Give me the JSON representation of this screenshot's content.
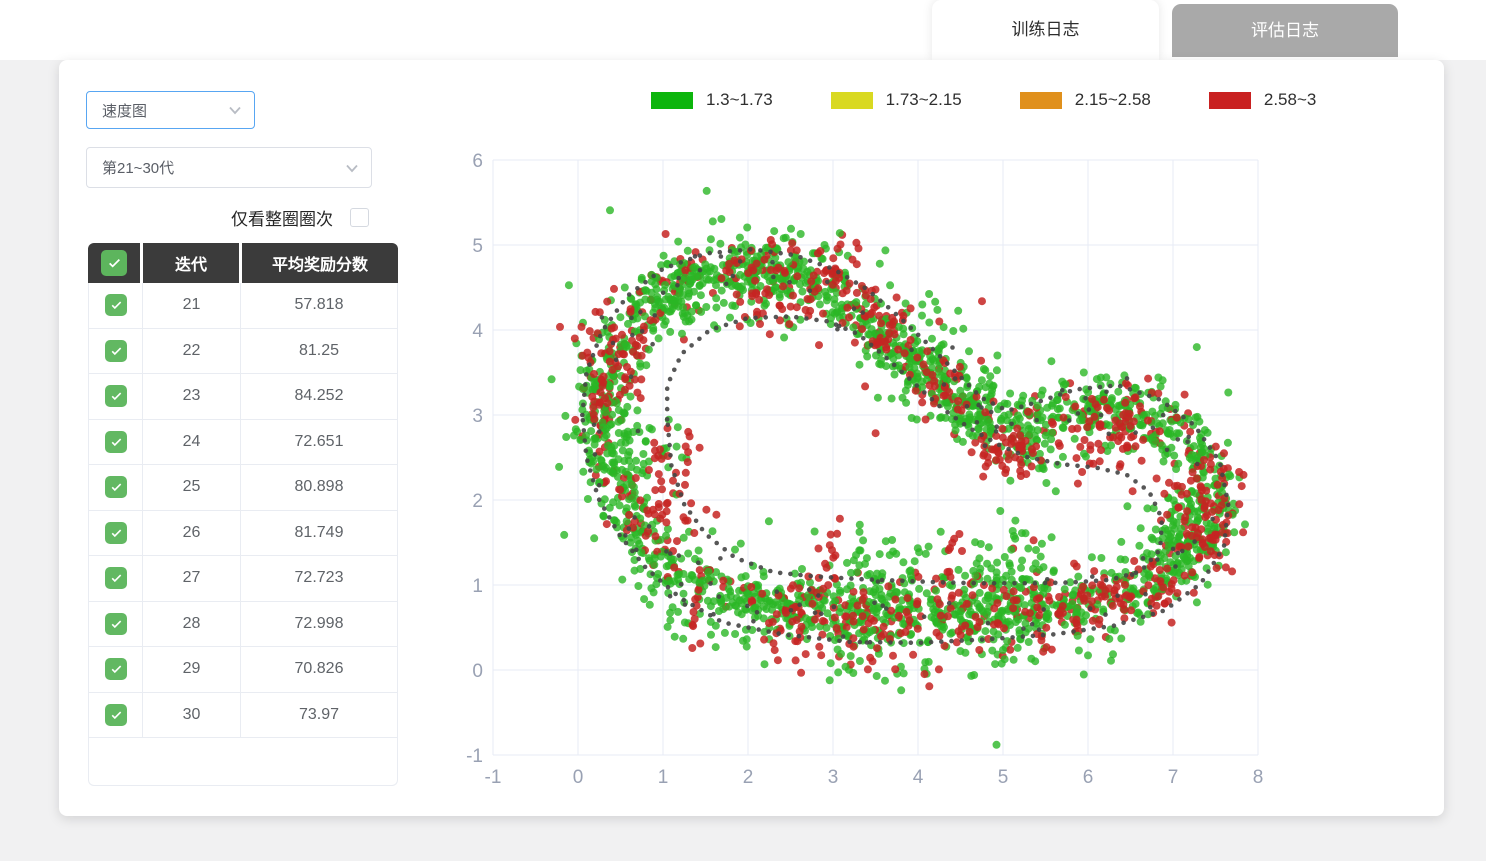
{
  "tabs": {
    "training": "训练日志",
    "evaluation": "评估日志",
    "active": "training"
  },
  "controls": {
    "chart_type_select": {
      "value": "速度图"
    },
    "generation_select": {
      "value": "第21~30代"
    },
    "full_laps_checkbox": {
      "label": "仅看整圈圈次",
      "checked": false
    }
  },
  "table": {
    "header": {
      "select_all_checked": true,
      "iteration": "迭代",
      "avg_reward": "平均奖励分数"
    },
    "rows": [
      {
        "checked": true,
        "iteration": "21",
        "avg_reward": "57.818"
      },
      {
        "checked": true,
        "iteration": "22",
        "avg_reward": "81.25"
      },
      {
        "checked": true,
        "iteration": "23",
        "avg_reward": "84.252"
      },
      {
        "checked": true,
        "iteration": "24",
        "avg_reward": "72.651"
      },
      {
        "checked": true,
        "iteration": "25",
        "avg_reward": "80.898"
      },
      {
        "checked": true,
        "iteration": "26",
        "avg_reward": "81.749"
      },
      {
        "checked": true,
        "iteration": "27",
        "avg_reward": "72.723"
      },
      {
        "checked": true,
        "iteration": "28",
        "avg_reward": "72.998"
      },
      {
        "checked": true,
        "iteration": "29",
        "avg_reward": "70.826"
      },
      {
        "checked": true,
        "iteration": "30",
        "avg_reward": "73.97"
      }
    ]
  },
  "chart_data": {
    "type": "scatter",
    "title": "",
    "xlabel": "",
    "ylabel": "",
    "xlim": [
      -1,
      8
    ],
    "ylim": [
      -1,
      6
    ],
    "xticks": [
      -1,
      0,
      1,
      2,
      3,
      4,
      5,
      6,
      7,
      8
    ],
    "yticks": [
      -1,
      0,
      1,
      2,
      3,
      4,
      5,
      6
    ],
    "grid": true,
    "legend": {
      "position": "top",
      "bins": [
        {
          "label": "1.3~1.73",
          "color": "#0cb50c"
        },
        {
          "label": "1.73~2.15",
          "color": "#d9d921"
        },
        {
          "label": "2.15~2.58",
          "color": "#e0901c"
        },
        {
          "label": "2.58~3",
          "color": "#c92121"
        }
      ]
    },
    "colors": {
      "green": "#2bb626",
      "red": "#c62522",
      "dark": "#454545"
    },
    "track_border_inner": [
      [
        1.05,
        2.95
      ],
      [
        1.05,
        3.35
      ],
      [
        1.22,
        3.72
      ],
      [
        1.55,
        4.0
      ],
      [
        2.0,
        4.14
      ],
      [
        2.5,
        4.16
      ],
      [
        2.95,
        4.1
      ],
      [
        3.3,
        3.95
      ],
      [
        3.62,
        3.68
      ],
      [
        3.95,
        3.38
      ],
      [
        4.28,
        3.08
      ],
      [
        4.6,
        2.85
      ],
      [
        4.95,
        2.65
      ],
      [
        5.3,
        2.5
      ],
      [
        5.7,
        2.42
      ],
      [
        6.1,
        2.38
      ],
      [
        6.45,
        2.3
      ],
      [
        6.72,
        2.1
      ],
      [
        6.87,
        1.78
      ],
      [
        6.85,
        1.42
      ],
      [
        6.62,
        1.16
      ],
      [
        6.25,
        1.06
      ],
      [
        5.8,
        1.03
      ],
      [
        5.3,
        1.02
      ],
      [
        4.8,
        1.02
      ],
      [
        4.3,
        1.03
      ],
      [
        3.8,
        1.05
      ],
      [
        3.3,
        1.07
      ],
      [
        2.8,
        1.1
      ],
      [
        2.3,
        1.15
      ],
      [
        1.85,
        1.32
      ],
      [
        1.5,
        1.6
      ],
      [
        1.25,
        1.95
      ],
      [
        1.1,
        2.4
      ]
    ],
    "track_border_outer": [
      [
        0.05,
        3.0
      ],
      [
        0.1,
        3.5
      ],
      [
        0.28,
        3.98
      ],
      [
        0.58,
        4.4
      ],
      [
        1.0,
        4.72
      ],
      [
        1.5,
        4.9
      ],
      [
        2.05,
        4.95
      ],
      [
        2.55,
        4.88
      ],
      [
        3.0,
        4.72
      ],
      [
        3.4,
        4.48
      ],
      [
        3.75,
        4.18
      ],
      [
        4.1,
        3.85
      ],
      [
        4.45,
        3.5
      ],
      [
        4.75,
        3.2
      ],
      [
        5.05,
        3.05
      ],
      [
        5.4,
        3.15
      ],
      [
        5.85,
        3.3
      ],
      [
        6.35,
        3.35
      ],
      [
        6.85,
        3.18
      ],
      [
        7.25,
        2.88
      ],
      [
        7.55,
        2.45
      ],
      [
        7.65,
        1.95
      ],
      [
        7.6,
        1.45
      ],
      [
        7.33,
        1.02
      ],
      [
        6.9,
        0.7
      ],
      [
        6.3,
        0.52
      ],
      [
        5.6,
        0.42
      ],
      [
        4.8,
        0.36
      ],
      [
        4.0,
        0.32
      ],
      [
        3.2,
        0.33
      ],
      [
        2.4,
        0.42
      ],
      [
        1.7,
        0.56
      ],
      [
        1.2,
        0.85
      ],
      [
        0.8,
        1.2
      ],
      [
        0.48,
        1.6
      ],
      [
        0.24,
        2.02
      ],
      [
        0.1,
        2.5
      ]
    ],
    "band_center": [
      [
        1.6,
        0.92
      ],
      [
        2.1,
        0.8
      ],
      [
        2.7,
        0.7
      ],
      [
        3.3,
        0.66
      ],
      [
        3.9,
        0.65
      ],
      [
        4.5,
        0.68
      ],
      [
        5.1,
        0.72
      ],
      [
        5.7,
        0.78
      ],
      [
        6.3,
        0.88
      ],
      [
        6.85,
        1.05
      ],
      [
        7.2,
        1.35
      ],
      [
        7.42,
        1.75
      ],
      [
        7.45,
        2.15
      ],
      [
        7.3,
        2.55
      ],
      [
        7.0,
        2.85
      ],
      [
        6.6,
        3.05
      ],
      [
        6.15,
        3.1
      ],
      [
        5.7,
        3.02
      ],
      [
        5.3,
        2.88
      ],
      [
        4.95,
        2.85
      ],
      [
        4.6,
        3.05
      ],
      [
        4.25,
        3.35
      ],
      [
        3.9,
        3.68
      ],
      [
        3.55,
        4.0
      ],
      [
        3.2,
        4.3
      ],
      [
        2.85,
        4.55
      ],
      [
        2.45,
        4.7
      ],
      [
        2.0,
        4.75
      ],
      [
        1.55,
        4.7
      ],
      [
        1.12,
        4.55
      ],
      [
        0.78,
        4.28
      ],
      [
        0.52,
        3.92
      ],
      [
        0.33,
        3.5
      ],
      [
        0.25,
        3.05
      ],
      [
        0.28,
        2.6
      ],
      [
        0.42,
        2.15
      ],
      [
        0.65,
        1.75
      ],
      [
        0.95,
        1.4
      ],
      [
        1.3,
        1.1
      ]
    ],
    "generation": {
      "seed": 1337,
      "main_count": 1900,
      "sigma": 0.17,
      "wide_sigma": 0.33,
      "wide_frac": 0.1,
      "outlier_sigma": 0.5,
      "outlier_frac": 0.03,
      "red_fraction": 0.18,
      "dark_speckles": 120,
      "speckle_sigma": 0.18,
      "point_radius": 4.0,
      "border_dot_radius": 2.3,
      "border_dot_spacing": 0.12
    },
    "red_hotspots": [
      [
        5.05,
        2.62,
        0.22,
        55
      ],
      [
        6.35,
        2.95,
        0.26,
        45
      ],
      [
        6.05,
        2.62,
        0.2,
        20
      ],
      [
        7.35,
        2.05,
        0.22,
        45
      ],
      [
        7.42,
        1.45,
        0.2,
        30
      ],
      [
        3.05,
        4.55,
        0.22,
        40
      ],
      [
        2.0,
        4.6,
        0.25,
        30
      ],
      [
        2.25,
        4.35,
        0.18,
        18
      ],
      [
        0.45,
        3.85,
        0.25,
        35
      ],
      [
        0.32,
        3.3,
        0.2,
        25
      ],
      [
        0.95,
        1.85,
        0.22,
        30
      ],
      [
        1.15,
        2.6,
        0.2,
        20
      ],
      [
        2.7,
        0.72,
        0.3,
        35
      ],
      [
        3.6,
        0.62,
        0.3,
        35
      ],
      [
        4.5,
        0.66,
        0.3,
        35
      ],
      [
        5.4,
        0.7,
        0.3,
        40
      ],
      [
        6.3,
        0.82,
        0.25,
        30
      ],
      [
        4.3,
        3.38,
        0.2,
        30
      ],
      [
        3.65,
        3.95,
        0.2,
        25
      ],
      [
        6.9,
        0.98,
        0.18,
        20
      ]
    ],
    "green_hotspots": [
      [
        1.3,
        4.45,
        0.25,
        60
      ],
      [
        2.3,
        4.6,
        0.28,
        70
      ],
      [
        0.5,
        2.6,
        0.3,
        70
      ],
      [
        3.5,
        0.75,
        0.4,
        80
      ],
      [
        5.0,
        0.8,
        0.4,
        80
      ],
      [
        7.1,
        1.6,
        0.3,
        60
      ],
      [
        6.5,
        3.05,
        0.3,
        50
      ],
      [
        3.9,
        3.7,
        0.3,
        60
      ],
      [
        4.6,
        3.1,
        0.25,
        50
      ],
      [
        5.3,
        2.6,
        0.2,
        30
      ]
    ],
    "spikes": [
      [
        2.88,
        1.05,
        3.05,
        1.75,
        10,
        "r"
      ],
      [
        3.22,
        1.05,
        3.32,
        1.6,
        8,
        "g"
      ],
      [
        3.55,
        1.0,
        3.68,
        1.55,
        8,
        "g"
      ],
      [
        3.9,
        1.05,
        4.02,
        1.5,
        7,
        "g"
      ],
      [
        4.3,
        1.0,
        4.45,
        1.6,
        9,
        "r"
      ],
      [
        4.68,
        1.05,
        4.8,
        1.55,
        8,
        "g"
      ],
      [
        5.0,
        1.0,
        5.15,
        1.62,
        9,
        "g"
      ],
      [
        5.3,
        1.05,
        5.42,
        1.5,
        7,
        "g"
      ],
      [
        0.72,
        1.5,
        0.7,
        0.88,
        6,
        "g"
      ],
      [
        0.88,
        1.32,
        0.86,
        0.78,
        6,
        "g"
      ],
      [
        1.08,
        1.05,
        1.06,
        0.45,
        7,
        "g"
      ],
      [
        1.25,
        0.92,
        1.22,
        0.4,
        6,
        "g"
      ],
      [
        1.4,
        0.82,
        1.38,
        0.28,
        7,
        "r"
      ],
      [
        1.6,
        0.72,
        1.58,
        0.3,
        5,
        "g"
      ],
      [
        1.95,
        0.6,
        1.95,
        0.22,
        5,
        "g"
      ],
      [
        2.3,
        0.52,
        2.35,
        0.12,
        5,
        "r"
      ],
      [
        2.6,
        0.5,
        2.62,
        0.0,
        4,
        "r"
      ],
      [
        3.1,
        0.4,
        3.12,
        0.12,
        4,
        "g"
      ],
      [
        4.1,
        0.35,
        4.12,
        0.1,
        4,
        "g"
      ],
      [
        5.0,
        0.35,
        5.05,
        0.05,
        4,
        "g"
      ],
      [
        5.9,
        0.35,
        5.95,
        0.02,
        4,
        "g"
      ],
      [
        6.3,
        0.45,
        6.35,
        0.1,
        4,
        "g"
      ]
    ],
    "strays": [
      [
        2.42,
        5.08,
        "g"
      ],
      [
        2.62,
        5.13,
        "g"
      ],
      [
        3.08,
        5.14,
        "g"
      ],
      [
        2.52,
        5.02,
        "r"
      ],
      [
        3.3,
        4.96,
        "r"
      ],
      [
        2.9,
        5.0,
        "g"
      ],
      [
        3.55,
        4.78,
        "g"
      ],
      [
        0.1,
        3.52,
        "g"
      ],
      [
        0.07,
        3.32,
        "g"
      ],
      [
        7.72,
        1.62,
        "g"
      ],
      [
        7.78,
        1.95,
        "r"
      ],
      [
        7.6,
        2.55,
        "r"
      ],
      [
        7.66,
        2.3,
        "g"
      ],
      [
        5.95,
        3.5,
        "g"
      ],
      [
        6.15,
        3.44,
        "g"
      ],
      [
        6.55,
        3.32,
        "g"
      ],
      [
        6.75,
        3.26,
        "r"
      ],
      [
        1.05,
        4.78,
        "g"
      ],
      [
        0.55,
        4.5,
        "g"
      ],
      [
        4.05,
        4.3,
        "g"
      ],
      [
        4.25,
        4.1,
        "r"
      ],
      [
        4.6,
        3.75,
        "g"
      ]
    ]
  }
}
